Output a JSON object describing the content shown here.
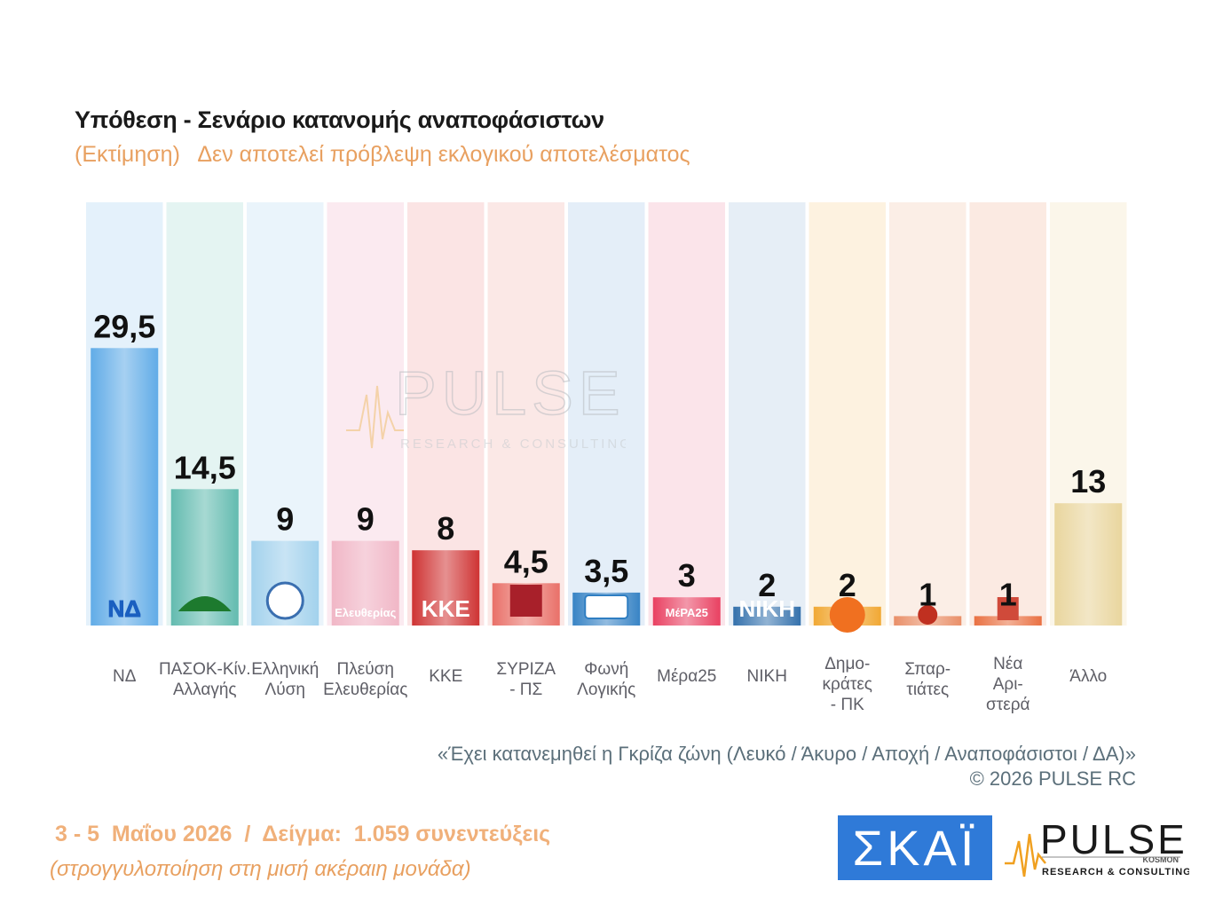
{
  "header": {
    "title": "Υπόθεση - Σενάριο κατανομής αναποφάσιστων",
    "subtitle": "(Εκτίμηση)   Δεν αποτελεί πρόβλεψη εκλογικού αποτελέσματος"
  },
  "chart_data": {
    "type": "bar",
    "categories": [
      "ΝΔ",
      "ΠΑΣΟΚ-Κίν. Αλλαγής",
      "Ελληνική Λύση",
      "Πλεύση Ελευθερίας",
      "ΚΚΕ",
      "ΣΥΡΙΖΑ - ΠΣ",
      "Φωνή Λογικής",
      "Μέρα25",
      "ΝΙΚΗ",
      "Δημο- κράτες - ΠΚ",
      "Σπαρ- τιάτες",
      "Νέα Αρι- στερά",
      "Άλλο"
    ],
    "category_lines": [
      [
        "ΝΔ"
      ],
      [
        "ΠΑΣΟΚ-Κίν.",
        "Αλλαγής"
      ],
      [
        "Ελληνική",
        "Λύση"
      ],
      [
        "Πλεύση",
        "Ελευθερίας"
      ],
      [
        "ΚΚΕ"
      ],
      [
        "ΣΥΡΙΖΑ",
        "- ΠΣ"
      ],
      [
        "Φωνή",
        "Λογικής"
      ],
      [
        "Μέρα25"
      ],
      [
        "ΝΙΚΗ"
      ],
      [
        "Δημο-",
        "κράτες",
        "- ΠΚ"
      ],
      [
        "Σπαρ-",
        "τιάτες"
      ],
      [
        "Νέα",
        "Αρι-",
        "στερά"
      ],
      [
        "Άλλο"
      ]
    ],
    "values": [
      29.5,
      14.5,
      9,
      9,
      8,
      4.5,
      3.5,
      3,
      2,
      2,
      1,
      1,
      13
    ],
    "value_labels": [
      "29,5",
      "14,5",
      "9",
      "9",
      "8",
      "4,5",
      "3,5",
      "3",
      "2",
      "2",
      "1",
      "1",
      "13"
    ],
    "ylim": [
      0,
      45
    ],
    "grid": false,
    "legend": "none",
    "bar_colors": [
      "#5aa8e6",
      "#5cb8ac",
      "#9fd0ec",
      "#f0b4c4",
      "#cc2a2a",
      "#e86a62",
      "#2f7ec2",
      "#e8385a",
      "#2a6aa8",
      "#f0a42a",
      "#e88a62",
      "#e86a3a",
      "#e8d49a"
    ],
    "column_tints": [
      "#e4f1fb",
      "#e4f4f2",
      "#eaf4fb",
      "#fbeaf0",
      "#fbe4e4",
      "#fbe8e6",
      "#e4eef8",
      "#fbe4ea",
      "#e6eef6",
      "#fdf2e0",
      "#fbeee6",
      "#fbeae2",
      "#fbf6ea"
    ],
    "logos": [
      "ΝΔ",
      "",
      "",
      "Ελευθερίας",
      "ΚΚΕ",
      "",
      "",
      "ΜέΡΑ25",
      "ΝΙΚΗ",
      "",
      "",
      "",
      ""
    ]
  },
  "footnote": {
    "line1": "«Έχει κατανεμηθεί η Γκρίζα ζώνη (Λευκό / Άκυρο / Αποχή / Αναποφάσιστοι / ΔΑ)»",
    "line2": "©  2026  PULSE RC"
  },
  "survey": {
    "dates": "3 - 5  Μαΐου 2026  /  Δείγμα:  1.059 συνεντεύξεις",
    "note": "(στρογγυλοποίηση στη μισή ακέραιη μονάδα)"
  },
  "brands": {
    "skai": "ΣΚΑΪ",
    "pulse": "PULSE",
    "pulse_sub": "RESEARCH & CONSULTING",
    "pulse_small": "KOSMON",
    "watermark": "PULSE",
    "watermark_sub": "RESEARCH & CONSULTING"
  }
}
